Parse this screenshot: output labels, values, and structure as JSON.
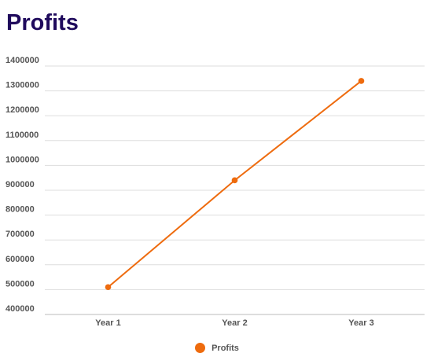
{
  "colors": {
    "title": "#1f0a5c",
    "series": "#ee6b0e",
    "grid": "#dddddd",
    "axis": "#bbbbbb"
  },
  "chart_data": {
    "type": "line",
    "title": "Profits",
    "xlabel": "",
    "ylabel": "",
    "categories": [
      "Year 1",
      "Year 2",
      "Year 3"
    ],
    "series": [
      {
        "name": "Profits",
        "values": [
          510000,
          940000,
          1340000
        ]
      }
    ],
    "ylim": [
      400000,
      1400000
    ],
    "yticks": [
      "400000",
      "500000",
      "600000",
      "700000",
      "800000",
      "900000",
      "1000000",
      "1100000",
      "1200000",
      "1300000",
      "1400000"
    ],
    "grid": true,
    "legend_position": "bottom-center"
  }
}
